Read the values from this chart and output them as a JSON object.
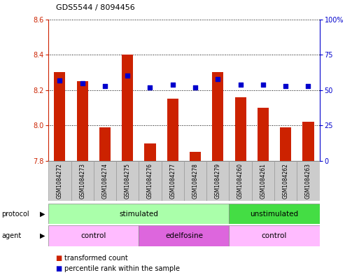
{
  "title": "GDS5544 / 8094456",
  "samples": [
    "GSM1084272",
    "GSM1084273",
    "GSM1084274",
    "GSM1084275",
    "GSM1084276",
    "GSM1084277",
    "GSM1084278",
    "GSM1084279",
    "GSM1084260",
    "GSM1084261",
    "GSM1084262",
    "GSM1084263"
  ],
  "transformed_count": [
    8.3,
    8.25,
    7.99,
    8.4,
    7.9,
    8.15,
    7.85,
    8.3,
    8.16,
    8.1,
    7.99,
    8.02
  ],
  "percentile_rank": [
    57,
    55,
    53,
    60,
    52,
    54,
    52,
    58,
    54,
    54,
    53,
    53
  ],
  "ylim_left": [
    7.8,
    8.6
  ],
  "ylim_right": [
    0,
    100
  ],
  "yticks_left": [
    7.8,
    8.0,
    8.2,
    8.4,
    8.6
  ],
  "yticks_right": [
    0,
    25,
    50,
    75,
    100
  ],
  "ytick_labels_right": [
    "0",
    "25",
    "50",
    "75",
    "100%"
  ],
  "bar_color": "#CC2200",
  "dot_color": "#0000CC",
  "bar_width": 0.5,
  "grid_color": "#000000",
  "protocol_groups": [
    {
      "label": "stimulated",
      "start": 0,
      "end": 8,
      "color": "#AAFFAA"
    },
    {
      "label": "unstimulated",
      "start": 8,
      "end": 12,
      "color": "#44DD44"
    }
  ],
  "agent_groups": [
    {
      "label": "control",
      "start": 0,
      "end": 4,
      "color": "#FFBBFF"
    },
    {
      "label": "edelfosine",
      "start": 4,
      "end": 8,
      "color": "#DD66DD"
    },
    {
      "label": "control",
      "start": 8,
      "end": 12,
      "color": "#FFBBFF"
    }
  ],
  "legend_items": [
    {
      "label": "transformed count",
      "color": "#CC2200"
    },
    {
      "label": "percentile rank within the sample",
      "color": "#0000CC"
    }
  ],
  "sample_bg_color": "#CCCCCC",
  "left_axis_color": "#CC2200",
  "right_axis_color": "#0000CC"
}
